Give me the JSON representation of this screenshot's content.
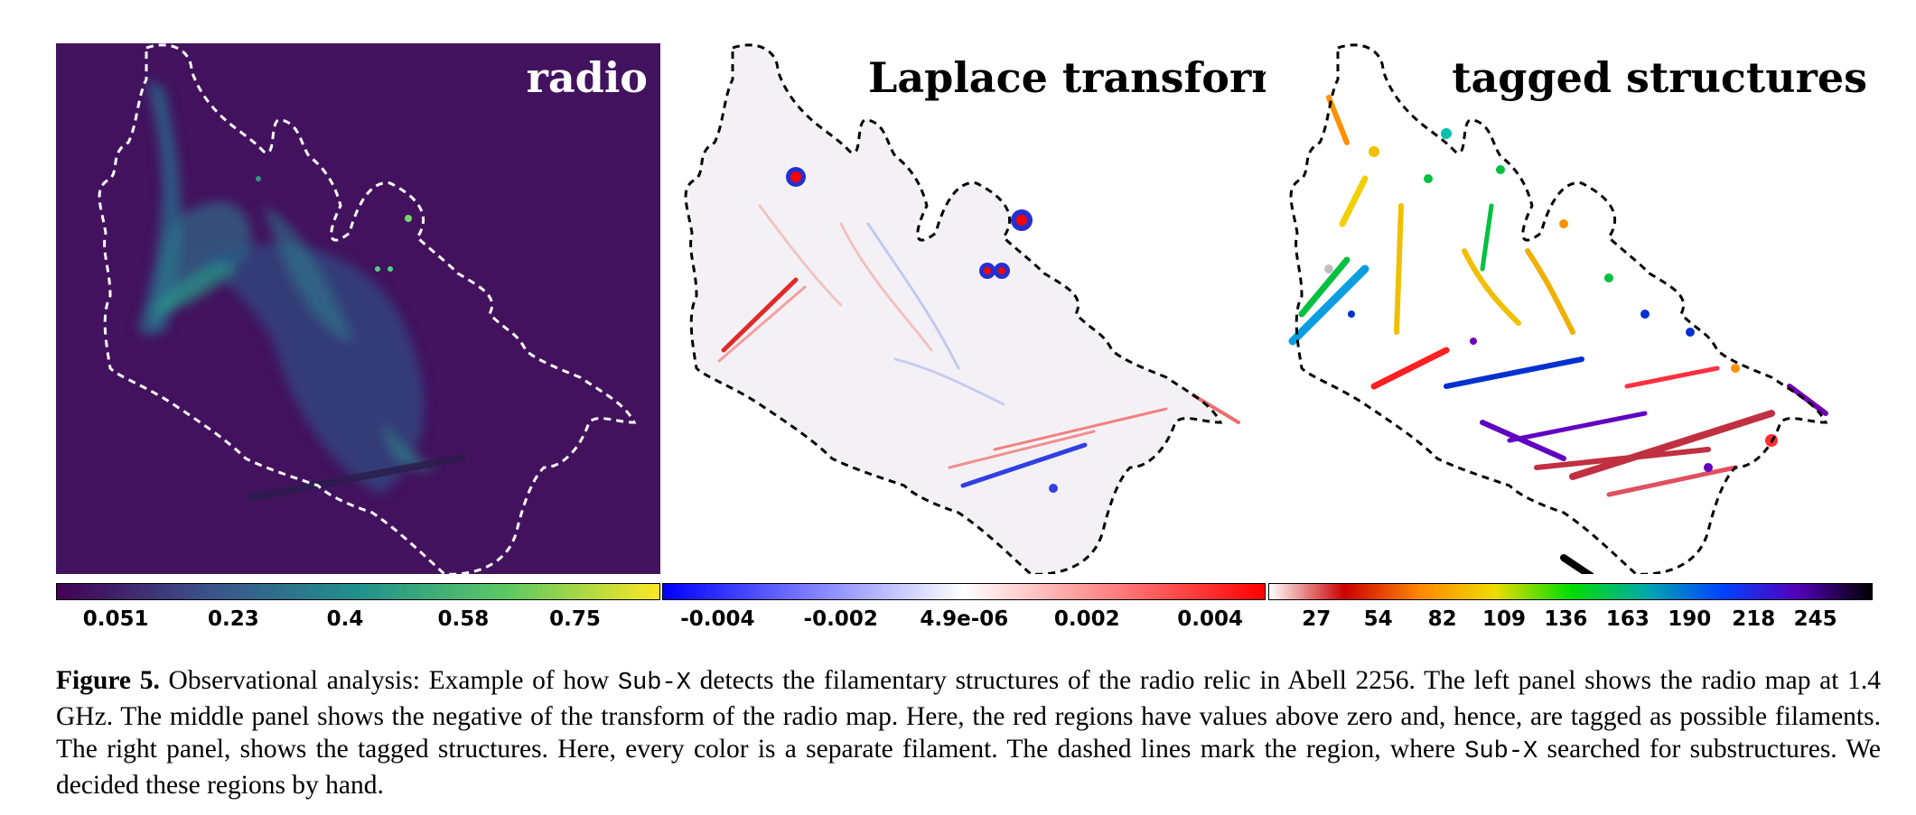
{
  "panels": {
    "radio": {
      "title": "radio"
    },
    "laplace": {
      "title": "Laplace transform"
    },
    "tagged": {
      "title": "tagged structures"
    }
  },
  "colorbars": {
    "radio": {
      "colormap": "viridis",
      "colors": [
        "#440154",
        "#3b528b",
        "#21908d",
        "#5dc963",
        "#fde725"
      ],
      "ticks": [
        "0.051",
        "0.23",
        "0.4",
        "0.58",
        "0.75"
      ],
      "tick_values": [
        0.051,
        0.23,
        0.4,
        0.58,
        0.75
      ],
      "range": [
        -0.04,
        0.88
      ]
    },
    "laplace": {
      "colormap": "bwr",
      "colors": [
        "#0000ff",
        "#ffffff",
        "#ff0000"
      ],
      "ticks": [
        "-0.004",
        "-0.002",
        "4.9e-06",
        "0.002",
        "0.004"
      ],
      "tick_values": [
        -0.004,
        -0.002,
        4.9e-06,
        0.002,
        0.004
      ],
      "range": [
        -0.0049,
        0.0049
      ]
    },
    "tagged": {
      "colormap": "nipy_spectral_r",
      "colors": [
        "#ffffff",
        "#cc0000",
        "#ff8800",
        "#eedd00",
        "#00dd00",
        "#00aaaa",
        "#0044ff",
        "#5500bb",
        "#000000"
      ],
      "ticks": [
        "27",
        "54",
        "82",
        "109",
        "136",
        "163",
        "190",
        "218",
        "245"
      ],
      "tick_values": [
        27,
        54,
        82,
        109,
        136,
        163,
        190,
        218,
        245
      ],
      "range": [
        6,
        270
      ]
    }
  },
  "caption": {
    "label": "Figure 5.",
    "part1": " Observational analysis: Example of how ",
    "code1": "Sub-X",
    "part2": " detects the filamentary structures of the radio relic in Abell 2256. The left panel shows the radio map at 1.4 GHz. The middle panel shows the negative of the transform of the radio map. Here, the red regions have values above zero and, hence, are tagged as possible filaments. The right panel, shows the tagged structures. Here, every color is a separate filament. The dashed lines mark the region, where ",
    "code2": "Sub-X",
    "part3": " searched for substructures. We decided these regions by hand."
  }
}
